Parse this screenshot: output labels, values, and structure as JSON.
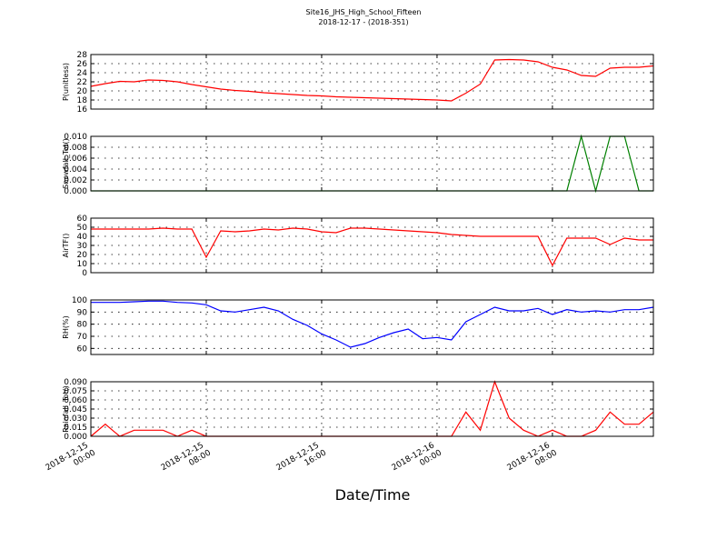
{
  "chart_data": [
    {
      "type": "line",
      "title": "Site16_JHS_High_School_Fifteen",
      "subtitle": "2018-12-17 - (2018-351)",
      "ylabel": "P(unitless)",
      "x": [
        "2018-12-15 00:00",
        "2018-12-15 01:00",
        "2018-12-15 02:00",
        "2018-12-15 03:00",
        "2018-12-15 04:00",
        "2018-12-15 05:00",
        "2018-12-15 06:00",
        "2018-12-15 07:00",
        "2018-12-15 08:00",
        "2018-12-15 09:00",
        "2018-12-15 10:00",
        "2018-12-15 11:00",
        "2018-12-15 12:00",
        "2018-12-15 13:00",
        "2018-12-15 14:00",
        "2018-12-15 15:00",
        "2018-12-15 16:00",
        "2018-12-15 17:00",
        "2018-12-15 18:00",
        "2018-12-15 19:00",
        "2018-12-15 20:00",
        "2018-12-15 21:00",
        "2018-12-15 22:00",
        "2018-12-15 23:00",
        "2018-12-16 00:00",
        "2018-12-16 01:00",
        "2018-12-16 02:00",
        "2018-12-16 03:00",
        "2018-12-16 04:00",
        "2018-12-16 05:00",
        "2018-12-16 06:00",
        "2018-12-16 07:00",
        "2018-12-16 08:00",
        "2018-12-16 09:00",
        "2018-12-16 10:00",
        "2018-12-16 11:00",
        "2018-12-16 12:00",
        "2018-12-16 13:00",
        "2018-12-16 14:00",
        "2018-12-16 15:00"
      ],
      "xlim": [
        "2018-12-15 00:00",
        "2018-12-16 15:00"
      ],
      "xticks": [
        "2018-12-15 00:00",
        "2018-12-15 08:00",
        "2018-12-15 16:00",
        "2018-12-16 00:00",
        "2018-12-16 08:00"
      ],
      "ylim": [
        16,
        28
      ],
      "yticks": [
        16,
        18,
        20,
        22,
        24,
        26,
        28
      ],
      "grid": true,
      "series": [
        {
          "color": "#ff0000",
          "values": [
            21.0,
            21.6,
            22.1,
            22.0,
            22.4,
            22.3,
            22.0,
            21.4,
            20.9,
            20.4,
            20.1,
            19.9,
            19.6,
            19.4,
            19.2,
            19.0,
            18.9,
            18.7,
            18.6,
            18.5,
            18.4,
            18.3,
            18.2,
            18.1,
            18.0,
            17.8,
            19.5,
            21.5,
            26.8,
            26.9,
            26.8,
            26.4,
            25.2,
            24.6,
            23.4,
            23.2,
            25.0,
            25.2,
            25.2,
            25.5
          ]
        }
      ]
    },
    {
      "type": "line",
      "ylabel": "Snowfall_Tot()",
      "x": [
        "2018-12-15 00:00",
        "2018-12-15 01:00",
        "2018-12-15 02:00",
        "2018-12-15 03:00",
        "2018-12-15 04:00",
        "2018-12-15 05:00",
        "2018-12-15 06:00",
        "2018-12-15 07:00",
        "2018-12-15 08:00",
        "2018-12-15 09:00",
        "2018-12-15 10:00",
        "2018-12-15 11:00",
        "2018-12-15 12:00",
        "2018-12-15 13:00",
        "2018-12-15 14:00",
        "2018-12-15 15:00",
        "2018-12-15 16:00",
        "2018-12-15 17:00",
        "2018-12-15 18:00",
        "2018-12-15 19:00",
        "2018-12-15 20:00",
        "2018-12-15 21:00",
        "2018-12-15 22:00",
        "2018-12-15 23:00",
        "2018-12-16 00:00",
        "2018-12-16 01:00",
        "2018-12-16 02:00",
        "2018-12-16 03:00",
        "2018-12-16 04:00",
        "2018-12-16 05:00",
        "2018-12-16 06:00",
        "2018-12-16 07:00",
        "2018-12-16 08:00",
        "2018-12-16 09:00",
        "2018-12-16 10:00",
        "2018-12-16 11:00",
        "2018-12-16 12:00",
        "2018-12-16 13:00",
        "2018-12-16 14:00",
        "2018-12-16 15:00"
      ],
      "xlim": [
        "2018-12-15 00:00",
        "2018-12-16 15:00"
      ],
      "xticks": [
        "2018-12-15 00:00",
        "2018-12-15 08:00",
        "2018-12-15 16:00",
        "2018-12-16 00:00",
        "2018-12-16 08:00"
      ],
      "ylim": [
        0,
        0.01
      ],
      "yticks": [
        {
          "value": 0,
          "label": "0.000"
        },
        {
          "value": 0.002,
          "label": "0.002"
        },
        {
          "value": 0.004,
          "label": "0.004"
        },
        {
          "value": 0.006,
          "label": "0.006"
        },
        {
          "value": 0.008,
          "label": "0.008"
        },
        {
          "value": 0.01,
          "label": "0.010"
        }
      ],
      "grid": true,
      "series": [
        {
          "color": "#008000",
          "values": [
            0,
            0,
            0,
            0,
            0,
            0,
            0,
            0,
            0,
            0,
            0,
            0,
            0,
            0,
            0,
            0,
            0,
            0,
            0,
            0,
            0,
            0,
            0,
            0,
            0,
            0,
            0,
            0,
            0,
            0,
            0,
            0,
            0,
            0,
            0.01,
            0,
            0.01,
            0.01,
            0,
            0
          ]
        }
      ]
    },
    {
      "type": "line",
      "ylabel": "AirTF()",
      "x": [
        "2018-12-15 00:00",
        "2018-12-15 01:00",
        "2018-12-15 02:00",
        "2018-12-15 03:00",
        "2018-12-15 04:00",
        "2018-12-15 05:00",
        "2018-12-15 06:00",
        "2018-12-15 07:00",
        "2018-12-15 08:00",
        "2018-12-15 09:00",
        "2018-12-15 10:00",
        "2018-12-15 11:00",
        "2018-12-15 12:00",
        "2018-12-15 13:00",
        "2018-12-15 14:00",
        "2018-12-15 15:00",
        "2018-12-15 16:00",
        "2018-12-15 17:00",
        "2018-12-15 18:00",
        "2018-12-15 19:00",
        "2018-12-15 20:00",
        "2018-12-15 21:00",
        "2018-12-15 22:00",
        "2018-12-15 23:00",
        "2018-12-16 00:00",
        "2018-12-16 01:00",
        "2018-12-16 02:00",
        "2018-12-16 03:00",
        "2018-12-16 04:00",
        "2018-12-16 05:00",
        "2018-12-16 06:00",
        "2018-12-16 07:00",
        "2018-12-16 08:00",
        "2018-12-16 09:00",
        "2018-12-16 10:00",
        "2018-12-16 11:00",
        "2018-12-16 12:00",
        "2018-12-16 13:00",
        "2018-12-16 14:00",
        "2018-12-16 15:00"
      ],
      "xlim": [
        "2018-12-15 00:00",
        "2018-12-16 15:00"
      ],
      "xticks": [
        "2018-12-15 00:00",
        "2018-12-15 08:00",
        "2018-12-15 16:00",
        "2018-12-16 00:00",
        "2018-12-16 08:00"
      ],
      "ylim": [
        0,
        60
      ],
      "yticks": [
        0,
        10,
        20,
        30,
        40,
        50,
        60
      ],
      "grid": true,
      "series": [
        {
          "color": "#ff0000",
          "values": [
            48,
            48,
            48,
            48,
            48,
            49,
            48,
            48,
            17,
            46,
            45,
            46,
            48,
            47,
            49,
            48,
            45,
            44,
            49,
            49,
            48,
            47,
            46,
            45,
            44,
            42,
            41,
            40,
            40,
            40,
            40,
            40,
            8,
            38,
            38,
            38,
            31,
            38,
            36,
            36
          ]
        }
      ]
    },
    {
      "type": "line",
      "ylabel": "RH(%)",
      "x": [
        "2018-12-15 00:00",
        "2018-12-15 01:00",
        "2018-12-15 02:00",
        "2018-12-15 03:00",
        "2018-12-15 04:00",
        "2018-12-15 05:00",
        "2018-12-15 06:00",
        "2018-12-15 07:00",
        "2018-12-15 08:00",
        "2018-12-15 09:00",
        "2018-12-15 10:00",
        "2018-12-15 11:00",
        "2018-12-15 12:00",
        "2018-12-15 13:00",
        "2018-12-15 14:00",
        "2018-12-15 15:00",
        "2018-12-15 16:00",
        "2018-12-15 17:00",
        "2018-12-15 18:00",
        "2018-12-15 19:00",
        "2018-12-15 20:00",
        "2018-12-15 21:00",
        "2018-12-15 22:00",
        "2018-12-15 23:00",
        "2018-12-16 00:00",
        "2018-12-16 01:00",
        "2018-12-16 02:00",
        "2018-12-16 03:00",
        "2018-12-16 04:00",
        "2018-12-16 05:00",
        "2018-12-16 06:00",
        "2018-12-16 07:00",
        "2018-12-16 08:00",
        "2018-12-16 09:00",
        "2018-12-16 10:00",
        "2018-12-16 11:00",
        "2018-12-16 12:00",
        "2018-12-16 13:00",
        "2018-12-16 14:00",
        "2018-12-16 15:00"
      ],
      "xlim": [
        "2018-12-15 00:00",
        "2018-12-16 15:00"
      ],
      "xticks": [
        "2018-12-15 00:00",
        "2018-12-15 08:00",
        "2018-12-15 16:00",
        "2018-12-16 00:00",
        "2018-12-16 08:00"
      ],
      "ylim": [
        55,
        100
      ],
      "yticks": [
        60,
        70,
        80,
        90,
        100
      ],
      "grid": true,
      "series": [
        {
          "color": "#0000ff",
          "values": [
            98,
            98,
            98,
            98.5,
            99,
            99,
            98,
            97.5,
            96,
            91,
            90,
            92,
            94,
            91,
            84,
            79,
            72,
            67,
            61,
            64,
            69,
            73,
            76,
            68,
            69,
            67,
            82,
            88,
            94,
            91,
            91,
            93,
            88,
            92,
            90,
            91,
            90,
            92,
            92,
            94
          ]
        }
      ]
    },
    {
      "type": "line",
      "ylabel": "Rainfall_Tot()",
      "xlabel": "Date/Time",
      "x": [
        "2018-12-15 00:00",
        "2018-12-15 01:00",
        "2018-12-15 02:00",
        "2018-12-15 03:00",
        "2018-12-15 04:00",
        "2018-12-15 05:00",
        "2018-12-15 06:00",
        "2018-12-15 07:00",
        "2018-12-15 08:00",
        "2018-12-15 09:00",
        "2018-12-15 10:00",
        "2018-12-15 11:00",
        "2018-12-15 12:00",
        "2018-12-15 13:00",
        "2018-12-15 14:00",
        "2018-12-15 15:00",
        "2018-12-15 16:00",
        "2018-12-15 17:00",
        "2018-12-15 18:00",
        "2018-12-15 19:00",
        "2018-12-15 20:00",
        "2018-12-15 21:00",
        "2018-12-15 22:00",
        "2018-12-15 23:00",
        "2018-12-16 00:00",
        "2018-12-16 01:00",
        "2018-12-16 02:00",
        "2018-12-16 03:00",
        "2018-12-16 04:00",
        "2018-12-16 05:00",
        "2018-12-16 06:00",
        "2018-12-16 07:00",
        "2018-12-16 08:00",
        "2018-12-16 09:00",
        "2018-12-16 10:00",
        "2018-12-16 11:00",
        "2018-12-16 12:00",
        "2018-12-16 13:00",
        "2018-12-16 14:00",
        "2018-12-16 15:00"
      ],
      "xlim": [
        "2018-12-15 00:00",
        "2018-12-16 15:00"
      ],
      "xticks": [
        "2018-12-15 00:00",
        "2018-12-15 08:00",
        "2018-12-15 16:00",
        "2018-12-16 00:00",
        "2018-12-16 08:00"
      ],
      "ylim": [
        0,
        0.09
      ],
      "yticks": [
        {
          "value": 0,
          "label": "0.000"
        },
        {
          "value": 0.015,
          "label": "0.015"
        },
        {
          "value": 0.03,
          "label": "0.030"
        },
        {
          "value": 0.045,
          "label": "0.045"
        },
        {
          "value": 0.06,
          "label": "0.060"
        },
        {
          "value": 0.075,
          "label": "0.075"
        },
        {
          "value": 0.09,
          "label": "0.090"
        }
      ],
      "grid": true,
      "series": [
        {
          "color": "#ff0000",
          "values": [
            0,
            0.02,
            0,
            0.01,
            0.01,
            0.01,
            0,
            0.01,
            0,
            0,
            0,
            0,
            0,
            0,
            0,
            0,
            0,
            0,
            0,
            0,
            0,
            0,
            0,
            0,
            0,
            0,
            0.04,
            0.01,
            0.09,
            0.03,
            0.01,
            0,
            0.01,
            0,
            0,
            0.01,
            0.04,
            0.02,
            0.02,
            0.04
          ]
        }
      ]
    }
  ]
}
